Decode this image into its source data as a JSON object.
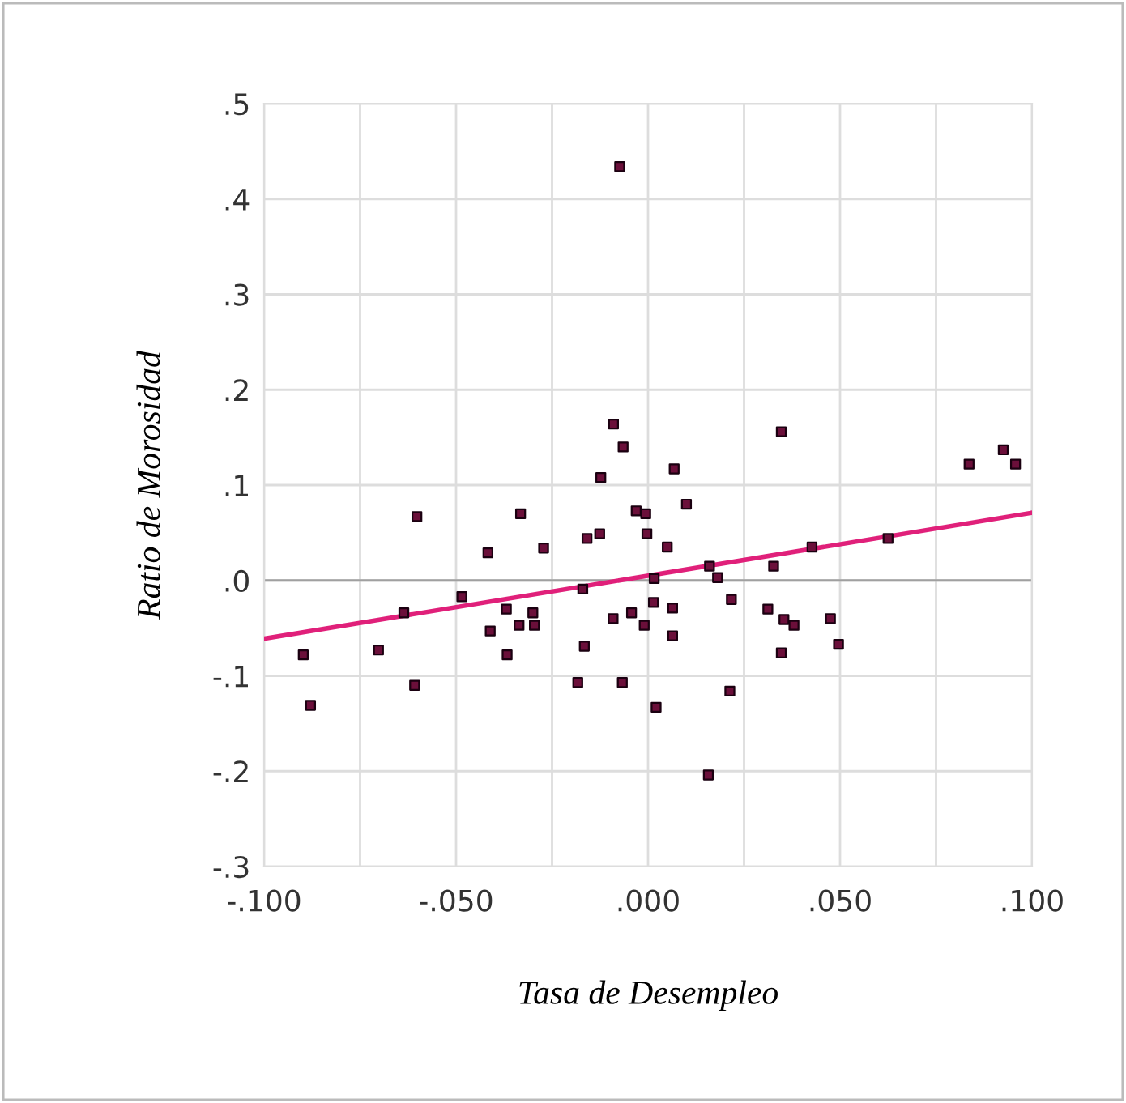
{
  "chart_data": {
    "type": "scatter",
    "xlabel": "Tasa de Desempleo",
    "ylabel": "Ratio de Morosidad",
    "xlim": [
      -0.1,
      0.1
    ],
    "ylim": [
      -0.3,
      0.5
    ],
    "xticks": [
      {
        "value": -0.1,
        "label": "-.100"
      },
      {
        "value": -0.075,
        "label": null
      },
      {
        "value": -0.05,
        "label": "-.050"
      },
      {
        "value": -0.025,
        "label": null
      },
      {
        "value": 0,
        "label": ".000"
      },
      {
        "value": 0.025,
        "label": null
      },
      {
        "value": 0.05,
        "label": ".050"
      },
      {
        "value": 0.075,
        "label": null
      },
      {
        "value": 0.1,
        "label": ".100"
      }
    ],
    "yticks": [
      {
        "value": -0.3,
        "label": "-.3"
      },
      {
        "value": -0.2,
        "label": "-.2"
      },
      {
        "value": -0.1,
        "label": "-.1"
      },
      {
        "value": 0,
        "label": ".0"
      },
      {
        "value": 0.1,
        "label": ".1"
      },
      {
        "value": 0.2,
        "label": ".2"
      },
      {
        "value": 0.3,
        "label": ".3"
      },
      {
        "value": 0.4,
        "label": ".4"
      },
      {
        "value": 0.5,
        "label": ".5"
      }
    ],
    "grid": true,
    "legend": false,
    "ref_lines": [
      {
        "axis": "y",
        "value": 0,
        "color": "#a0a0a0"
      }
    ],
    "series": [
      {
        "marker": "square",
        "color": "#6b0f3a",
        "x": [
          -0.0074,
          -0.009,
          -0.0065,
          -0.0123,
          0.0068,
          0.01,
          0.0347,
          0.0925,
          0.0836,
          0.0957,
          -0.0602,
          -0.0332,
          -0.0031,
          -0.0006,
          -0.0003,
          -0.0126,
          -0.0159,
          -0.0417,
          -0.0272,
          0.005,
          0.0016,
          -0.017,
          -0.0485,
          -0.0636,
          -0.0369,
          -0.03,
          -0.0411,
          -0.0336,
          -0.0296,
          0.0014,
          -0.0091,
          -0.0043,
          -0.001,
          -0.0898,
          -0.0702,
          -0.0367,
          -0.0166,
          -0.0608,
          -0.0183,
          -0.0067,
          -0.0879,
          0.0021,
          0.0064,
          0.0064,
          0.016,
          0.0181,
          0.0217,
          0.0327,
          0.0427,
          0.0625,
          0.0312,
          0.0354,
          0.038,
          0.0475,
          0.0496,
          0.0347,
          0.0213,
          0.0157
        ],
        "values": [
          0.434,
          0.164,
          0.14,
          0.108,
          0.117,
          0.08,
          0.156,
          0.137,
          0.122,
          0.122,
          0.067,
          0.07,
          0.073,
          0.07,
          0.049,
          0.049,
          0.044,
          0.029,
          0.034,
          0.035,
          0.002,
          -0.009,
          -0.017,
          -0.034,
          -0.03,
          -0.034,
          -0.053,
          -0.047,
          -0.047,
          -0.023,
          -0.04,
          -0.034,
          -0.047,
          -0.078,
          -0.073,
          -0.078,
          -0.069,
          -0.11,
          -0.107,
          -0.107,
          -0.131,
          -0.133,
          -0.029,
          -0.058,
          0.015,
          0.003,
          -0.02,
          0.015,
          0.035,
          0.044,
          -0.03,
          -0.041,
          -0.047,
          -0.04,
          -0.067,
          -0.076,
          -0.116,
          -0.204
        ]
      },
      {
        "type": "line",
        "color": "#e0207a",
        "x": [
          -0.1,
          0.1
        ],
        "values": [
          -0.061,
          0.071
        ]
      }
    ]
  }
}
